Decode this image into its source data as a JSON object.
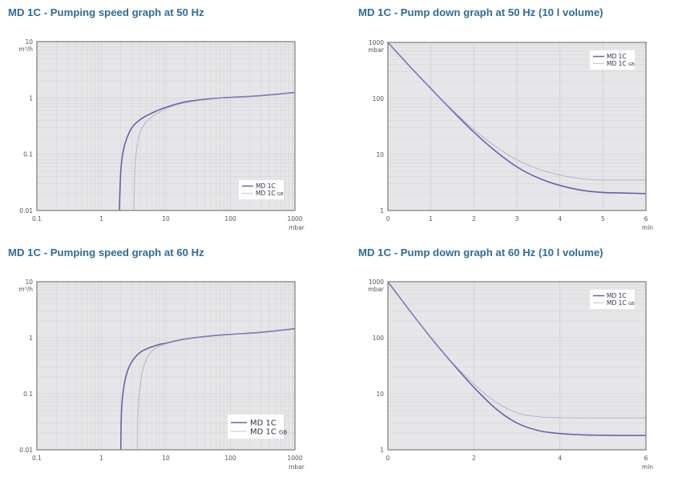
{
  "colors": {
    "title": "#2f6d96",
    "plot_bg": "#e6e6e8",
    "frame": "#8c8c8c",
    "grid": "#d6d6da",
    "series_main": "#6464aa",
    "series_gb": "#9a9ac8"
  },
  "panels": [
    {
      "title": "MD 1C - Pumping speed graph at 50 Hz"
    },
    {
      "title": "MD 1C - Pump down graph at 50 Hz (10 l volume)"
    },
    {
      "title": "MD 1C - Pumping speed graph at 60 Hz"
    },
    {
      "title": "MD 1C - Pump down graph at 60 Hz (10 l volume)"
    }
  ],
  "chart_data": [
    {
      "type": "line",
      "title": "MD 1C - Pumping speed graph at 50 Hz",
      "xlabel": "mbar",
      "ylabel": "m³/h",
      "xscale": "log",
      "yscale": "log",
      "xlim": [
        0.1,
        1000
      ],
      "ylim": [
        0.01,
        10
      ],
      "xticks": [
        "0.1",
        "1",
        "10",
        "100",
        "1000"
      ],
      "yticks": [
        "0.01",
        "0.1",
        "1",
        "10"
      ],
      "grid": true,
      "legend_position": "lower right",
      "legend_size": "small",
      "series": [
        {
          "name": "MD 1C",
          "style": "solid",
          "x": [
            1.9,
            2.0,
            2.2,
            2.6,
            3.2,
            4.5,
            7,
            10,
            20,
            50,
            100,
            300,
            1000
          ],
          "y": [
            0.01,
            0.05,
            0.12,
            0.22,
            0.33,
            0.45,
            0.58,
            0.68,
            0.85,
            0.97,
            1.02,
            1.1,
            1.25
          ]
        },
        {
          "name": "MD 1C GB",
          "style": "dotted",
          "x": [
            3.2,
            3.3,
            3.6,
            4.2,
            5.5,
            8,
            12,
            20,
            50,
            100,
            300,
            1000
          ],
          "y": [
            0.01,
            0.05,
            0.15,
            0.28,
            0.42,
            0.56,
            0.7,
            0.82,
            0.96,
            1.02,
            1.1,
            1.25
          ]
        }
      ]
    },
    {
      "type": "line",
      "title": "MD 1C - Pump down graph at 50 Hz (10 l volume)",
      "xlabel": "min",
      "ylabel": "mbar",
      "xscale": "linear",
      "yscale": "log",
      "xlim": [
        0,
        6
      ],
      "ylim": [
        1,
        1000
      ],
      "xticks": [
        "0",
        "1",
        "2",
        "3",
        "4",
        "5",
        "6"
      ],
      "yticks": [
        "1",
        "10",
        "100",
        "1000"
      ],
      "grid": true,
      "legend_position": "upper right",
      "legend_size": "small",
      "series": [
        {
          "name": "MD 1C",
          "style": "solid",
          "x": [
            0,
            0.5,
            1,
            1.5,
            2,
            2.5,
            3,
            3.5,
            4,
            4.5,
            5,
            5.5,
            6
          ],
          "y": [
            1000,
            380,
            150,
            60,
            25,
            11.5,
            6,
            3.8,
            2.8,
            2.3,
            2.1,
            2.05,
            2.0
          ]
        },
        {
          "name": "MD 1C GB",
          "style": "dotted",
          "x": [
            0,
            0.5,
            1,
            1.5,
            2,
            2.5,
            3,
            3.5,
            4,
            4.5,
            5,
            5.5,
            6
          ],
          "y": [
            1000,
            380,
            150,
            62,
            28,
            14,
            8,
            5.5,
            4.3,
            3.7,
            3.5,
            3.5,
            3.5
          ]
        }
      ]
    },
    {
      "type": "line",
      "title": "MD 1C - Pumping speed graph at 60 Hz",
      "xlabel": "mbar",
      "ylabel": "m³/h",
      "xscale": "log",
      "yscale": "log",
      "xlim": [
        0.1,
        1000
      ],
      "ylim": [
        0.01,
        10
      ],
      "xticks": [
        "0.1",
        "1",
        "10",
        "100",
        "1000"
      ],
      "yticks": [
        "0.01",
        "0.1",
        "1",
        "10"
      ],
      "grid": true,
      "legend_position": "lower right",
      "legend_size": "large",
      "series": [
        {
          "name": "MD 1C",
          "style": "solid",
          "x": [
            2.0,
            2.05,
            2.2,
            2.5,
            3,
            4,
            5.5,
            8,
            10,
            20,
            50,
            100,
            300,
            1000
          ],
          "y": [
            0.01,
            0.05,
            0.12,
            0.24,
            0.38,
            0.55,
            0.66,
            0.76,
            0.8,
            0.95,
            1.08,
            1.15,
            1.25,
            1.45
          ]
        },
        {
          "name": "MD 1C GB",
          "style": "dotted",
          "x": [
            3.6,
            3.7,
            4.0,
            4.5,
            5.5,
            7,
            10,
            20,
            50,
            100,
            300,
            1000
          ],
          "y": [
            0.01,
            0.05,
            0.14,
            0.3,
            0.5,
            0.65,
            0.78,
            0.95,
            1.08,
            1.15,
            1.25,
            1.45
          ]
        }
      ]
    },
    {
      "type": "line",
      "title": "MD 1C - Pump down graph at 60 Hz (10 l volume)",
      "xlabel": "min",
      "ylabel": "mbar",
      "xscale": "linear",
      "yscale": "log",
      "xlim": [
        0,
        6
      ],
      "ylim": [
        1,
        1000
      ],
      "xticks": [
        "0",
        "2",
        "4",
        "6"
      ],
      "yticks": [
        "1",
        "10",
        "100",
        "1000"
      ],
      "grid": true,
      "legend_position": "upper right",
      "legend_size": "small",
      "series": [
        {
          "name": "MD 1C",
          "style": "solid",
          "x": [
            0,
            0.5,
            1,
            1.5,
            2,
            2.5,
            3,
            3.5,
            4,
            4.5,
            5,
            5.5,
            6
          ],
          "y": [
            1000,
            310,
            100,
            35,
            13,
            5.5,
            3,
            2.2,
            1.95,
            1.85,
            1.82,
            1.8,
            1.8
          ]
        },
        {
          "name": "MD 1C GB",
          "style": "dotted",
          "x": [
            0,
            0.5,
            1,
            1.5,
            2,
            2.5,
            3,
            3.5,
            4,
            4.5,
            5,
            5.5,
            6
          ],
          "y": [
            1000,
            310,
            100,
            36,
            15,
            7.2,
            4.6,
            3.9,
            3.75,
            3.7,
            3.7,
            3.7,
            3.7
          ]
        }
      ]
    }
  ]
}
